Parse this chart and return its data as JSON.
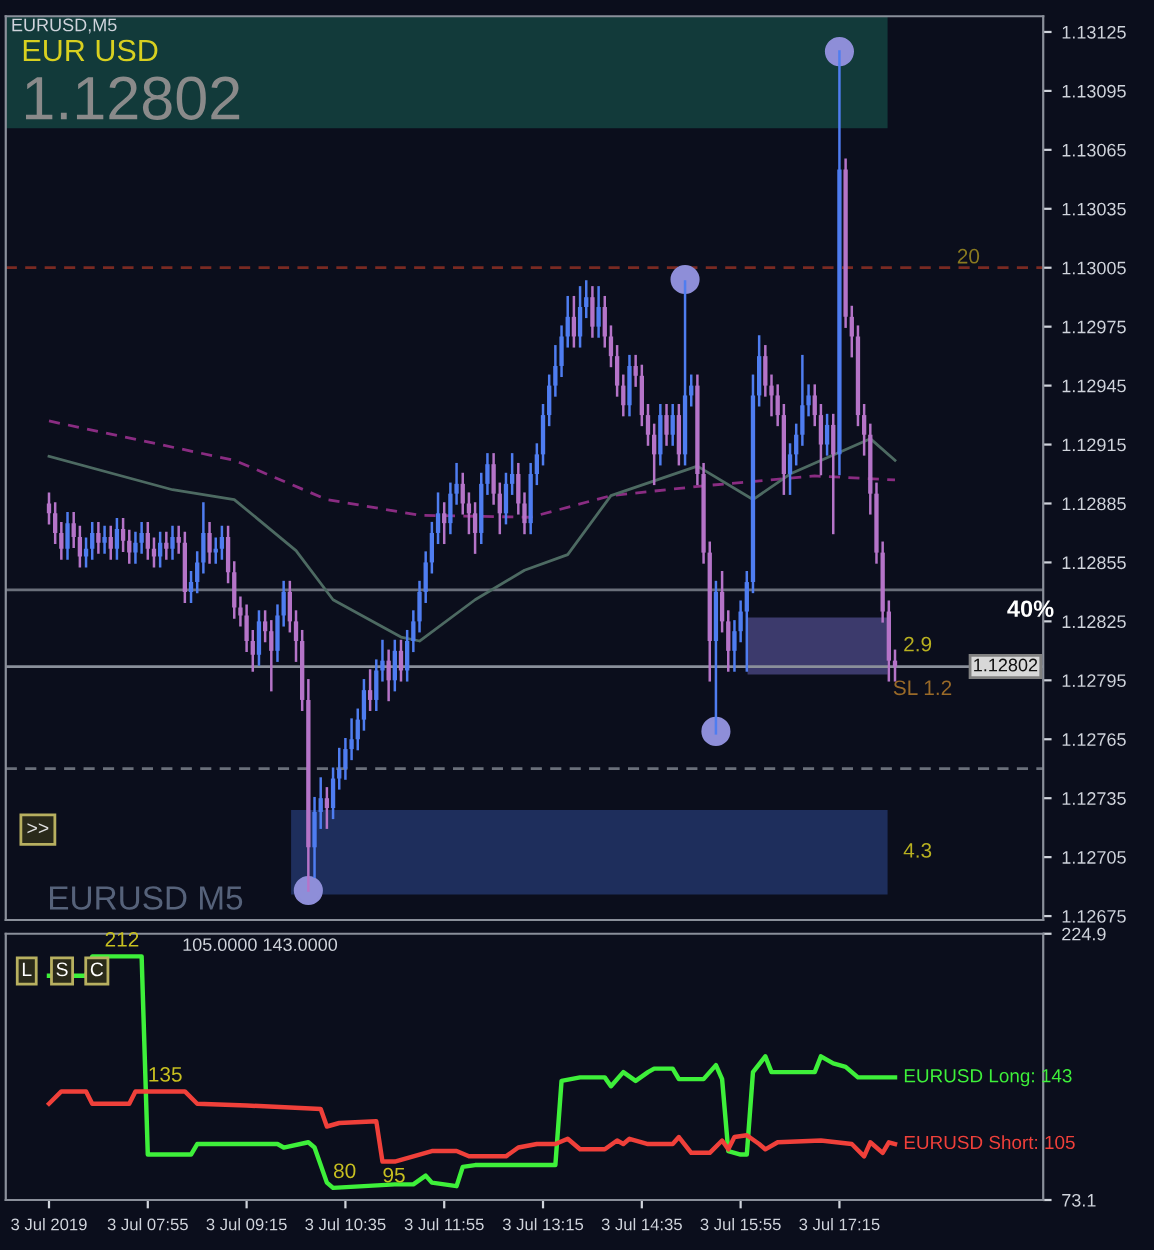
{
  "chart_data": [
    {
      "type": "candlestick",
      "title": "EURUSD,M5",
      "tick_labels": "y",
      "xlim": [
        "2019-07-03T06:00",
        "2019-07-03T20:00"
      ],
      "ylim": [
        1.12673,
        1.13133
      ],
      "yticks": [
        1.13125,
        1.13095,
        1.13065,
        1.13035,
        1.13005,
        1.12975,
        1.12945,
        1.12915,
        1.12885,
        1.12855,
        1.12825,
        1.12795,
        1.12765,
        1.12735,
        1.12705,
        1.12675
      ],
      "colors": [
        "#b574c8",
        "#b574c8",
        "#b574c8",
        "#4f7df0",
        "#b574c8",
        "#b574c8",
        "#4f7df0",
        "#4f7df0",
        "#b574c8",
        "#4f7df0",
        "#b574c8",
        "#4f7df0",
        "#b574c8",
        "#b574c8",
        "#4f7df0",
        "#4f7df0",
        "#b574c8",
        "#b574c8",
        "#4f7df0",
        "#b574c8",
        "#4f7df0",
        "#b574c8",
        "#b574c8",
        "#4f7df0",
        "#4f7df0",
        "#4f7df0",
        "#b574c8",
        "#4f7df0",
        "#4f7df0",
        "#b574c8",
        "#b574c8",
        "#b574c8",
        "#b574c8",
        "#b574c8",
        "#4f7df0",
        "#b574c8",
        "#b574c8",
        "#4f7df0",
        "#4f7df0",
        "#b574c8",
        "#b574c8",
        "#b574c8",
        "#b574c8",
        "#4f7df0",
        "#4f7df0",
        "#b574c8",
        "#4f7df0",
        "#4f7df0",
        "#4f7df0",
        "#4f7df0",
        "#4f7df0",
        "#4f7df0",
        "#b574c8",
        "#4f7df0",
        "#4f7df0",
        "#b574c8",
        "#4f7df0",
        "#b574c8",
        "#4f7df0",
        "#4f7df0",
        "#4f7df0",
        "#4f7df0",
        "#4f7df0",
        "#4f7df0",
        "#b574c8",
        "#4f7df0",
        "#4f7df0",
        "#b574c8",
        "#b574c8",
        "#b574c8",
        "#4f7df0",
        "#4f7df0",
        "#b574c8",
        "#b574c8",
        "#4f7df0",
        "#4f7df0",
        "#b574c8",
        "#b574c8",
        "#4f7df0",
        "#4f7df0",
        "#4f7df0",
        "#4f7df0",
        "#4f7df0",
        "#4f7df0",
        "#4f7df0",
        "#b574c8",
        "#4f7df0",
        "#4f7df0",
        "#b574c8",
        "#4f7df0",
        "#b574c8",
        "#b574c8",
        "#b574c8",
        "#b574c8",
        "#4f7df0",
        "#b574c8",
        "#b574c8",
        "#b574c8",
        "#b574c8",
        "#4f7df0",
        "#b574c8",
        "#4f7df0",
        "#b574c8",
        "#4f7df0",
        "#4f7df0",
        "#b574c8",
        "#b574c8",
        "#b574c8",
        "#4f7df0",
        "#b574c8",
        "#b574c8",
        "#4f7df0",
        "#4f7df0",
        "#4f7df0",
        "#4f7df0",
        "#4f7df0",
        "#b574c8",
        "#b574c8",
        "#b574c8",
        "#b574c8",
        "#4f7df0",
        "#4f7df0",
        "#4f7df0",
        "#4f7df0",
        "#b574c8",
        "#b574c8",
        "#4f7df0",
        "#b574c8",
        "#4f7df0",
        "#b574c8",
        "#b574c8",
        "#b574c8",
        "#b574c8",
        "#b574c8",
        "#b574c8",
        "#b574c8",
        "#b574c8",
        "#b574c8"
      ],
      "x": [
        "2019-07-03T06:35",
        "2019-07-03T06:40",
        "2019-07-03T06:45",
        "2019-07-03T06:50",
        "2019-07-03T06:55",
        "2019-07-03T07:00",
        "2019-07-03T07:05",
        "2019-07-03T07:10",
        "2019-07-03T07:15",
        "2019-07-03T07:20",
        "2019-07-03T07:25",
        "2019-07-03T07:30",
        "2019-07-03T07:35",
        "2019-07-03T07:40",
        "2019-07-03T07:45",
        "2019-07-03T07:50",
        "2019-07-03T07:55",
        "2019-07-03T08:00",
        "2019-07-03T08:05",
        "2019-07-03T08:10",
        "2019-07-03T08:15",
        "2019-07-03T08:20",
        "2019-07-03T08:25",
        "2019-07-03T08:30",
        "2019-07-03T08:35",
        "2019-07-03T08:40",
        "2019-07-03T08:45",
        "2019-07-03T08:50",
        "2019-07-03T08:55",
        "2019-07-03T09:00",
        "2019-07-03T09:05",
        "2019-07-03T09:10",
        "2019-07-03T09:15",
        "2019-07-03T09:20",
        "2019-07-03T09:25",
        "2019-07-03T09:30",
        "2019-07-03T09:35",
        "2019-07-03T09:40",
        "2019-07-03T09:45",
        "2019-07-03T09:50",
        "2019-07-03T09:55",
        "2019-07-03T10:00",
        "2019-07-03T10:05",
        "2019-07-03T10:10",
        "2019-07-03T10:15",
        "2019-07-03T10:20",
        "2019-07-03T10:25",
        "2019-07-03T10:30",
        "2019-07-03T10:35",
        "2019-07-03T10:40",
        "2019-07-03T10:45",
        "2019-07-03T10:50",
        "2019-07-03T10:55",
        "2019-07-03T11:00",
        "2019-07-03T11:05",
        "2019-07-03T11:10",
        "2019-07-03T11:15",
        "2019-07-03T11:20",
        "2019-07-03T11:25",
        "2019-07-03T11:30",
        "2019-07-03T11:35",
        "2019-07-03T11:40",
        "2019-07-03T11:45",
        "2019-07-03T11:50",
        "2019-07-03T11:55",
        "2019-07-03T12:00",
        "2019-07-03T12:05",
        "2019-07-03T12:10",
        "2019-07-03T12:15",
        "2019-07-03T12:20",
        "2019-07-03T12:25",
        "2019-07-03T12:30",
        "2019-07-03T12:35",
        "2019-07-03T12:40",
        "2019-07-03T12:45",
        "2019-07-03T12:50",
        "2019-07-03T12:55",
        "2019-07-03T13:00",
        "2019-07-03T13:05",
        "2019-07-03T13:10",
        "2019-07-03T13:15",
        "2019-07-03T13:20",
        "2019-07-03T13:25",
        "2019-07-03T13:30",
        "2019-07-03T13:35",
        "2019-07-03T13:40",
        "2019-07-03T13:45",
        "2019-07-03T13:50",
        "2019-07-03T13:55",
        "2019-07-03T14:00",
        "2019-07-03T14:05",
        "2019-07-03T14:10",
        "2019-07-03T14:15",
        "2019-07-03T14:20",
        "2019-07-03T14:25",
        "2019-07-03T14:30",
        "2019-07-03T14:35",
        "2019-07-03T14:40",
        "2019-07-03T14:45",
        "2019-07-03T14:50",
        "2019-07-03T14:55",
        "2019-07-03T15:00",
        "2019-07-03T15:05",
        "2019-07-03T15:10",
        "2019-07-03T15:15",
        "2019-07-03T15:20",
        "2019-07-03T15:25",
        "2019-07-03T15:30",
        "2019-07-03T15:35",
        "2019-07-03T15:40",
        "2019-07-03T15:45",
        "2019-07-03T15:50",
        "2019-07-03T15:55",
        "2019-07-03T16:00",
        "2019-07-03T16:05",
        "2019-07-03T16:10",
        "2019-07-03T16:15",
        "2019-07-03T16:20",
        "2019-07-03T16:25",
        "2019-07-03T16:30",
        "2019-07-03T16:35",
        "2019-07-03T16:40",
        "2019-07-03T16:45",
        "2019-07-03T16:50",
        "2019-07-03T16:55",
        "2019-07-03T17:00",
        "2019-07-03T17:05",
        "2019-07-03T17:10",
        "2019-07-03T17:15",
        "2019-07-03T17:20",
        "2019-07-03T17:25",
        "2019-07-03T17:30",
        "2019-07-03T17:35",
        "2019-07-03T17:40",
        "2019-07-03T17:45",
        "2019-07-03T17:50",
        "2019-07-03T17:55",
        "2019-07-03T18:00"
      ],
      "ohlc": [
        [
          1.12885,
          1.1289,
          1.12875,
          1.1288
        ],
        [
          1.1288,
          1.12885,
          1.12865,
          1.1287
        ],
        [
          1.1287,
          1.12875,
          1.12857,
          1.12862
        ],
        [
          1.12862,
          1.1288,
          1.12857,
          1.12875
        ],
        [
          1.12875,
          1.1288,
          1.12863,
          1.12868
        ],
        [
          1.12868,
          1.12873,
          1.12853,
          1.12858
        ],
        [
          1.12858,
          1.12867,
          1.12853,
          1.12862
        ],
        [
          1.12862,
          1.12875,
          1.12857,
          1.1287
        ],
        [
          1.1287,
          1.12875,
          1.1286,
          1.12865
        ],
        [
          1.12865,
          1.12873,
          1.1286,
          1.12868
        ],
        [
          1.12868,
          1.12873,
          1.12857,
          1.12862
        ],
        [
          1.12862,
          1.12877,
          1.12857,
          1.12872
        ],
        [
          1.12872,
          1.12877,
          1.12861,
          1.12866
        ],
        [
          1.12866,
          1.12871,
          1.12855,
          1.1286
        ],
        [
          1.1286,
          1.1287,
          1.12855,
          1.12865
        ],
        [
          1.12865,
          1.12875,
          1.1286,
          1.1287
        ],
        [
          1.1287,
          1.12875,
          1.12857,
          1.12862
        ],
        [
          1.12862,
          1.12867,
          1.12853,
          1.12858
        ],
        [
          1.12858,
          1.1287,
          1.12853,
          1.12865
        ],
        [
          1.12865,
          1.1287,
          1.12857,
          1.12862
        ],
        [
          1.12862,
          1.12873,
          1.12857,
          1.12868
        ],
        [
          1.12868,
          1.12873,
          1.1286,
          1.12865
        ],
        [
          1.12865,
          1.1287,
          1.12835,
          1.1284
        ],
        [
          1.1284,
          1.1285,
          1.12835,
          1.12845
        ],
        [
          1.12845,
          1.1286,
          1.1284,
          1.12855
        ],
        [
          1.12855,
          1.12885,
          1.1285,
          1.1287
        ],
        [
          1.1287,
          1.12875,
          1.12855,
          1.1286
        ],
        [
          1.1286,
          1.12867,
          1.12855,
          1.12862
        ],
        [
          1.12862,
          1.12873,
          1.12857,
          1.12868
        ],
        [
          1.12868,
          1.12873,
          1.12845,
          1.1285
        ],
        [
          1.1285,
          1.12855,
          1.12827,
          1.12832
        ],
        [
          1.12832,
          1.12837,
          1.12823,
          1.12828
        ],
        [
          1.12828,
          1.12833,
          1.1281,
          1.12815
        ],
        [
          1.12815,
          1.1282,
          1.128,
          1.12808
        ],
        [
          1.12808,
          1.1283,
          1.12803,
          1.12825
        ],
        [
          1.12825,
          1.1283,
          1.12815,
          1.1282
        ],
        [
          1.1282,
          1.12825,
          1.1279,
          1.1281
        ],
        [
          1.1281,
          1.12833,
          1.12805,
          1.12828
        ],
        [
          1.12828,
          1.12845,
          1.12823,
          1.1284
        ],
        [
          1.1284,
          1.12845,
          1.1282,
          1.12825
        ],
        [
          1.12825,
          1.1283,
          1.12805,
          1.12815
        ],
        [
          1.12815,
          1.1282,
          1.1278,
          1.12785
        ],
        [
          1.12785,
          1.12795,
          1.12688,
          1.1271
        ],
        [
          1.1271,
          1.12735,
          1.12695,
          1.12728
        ],
        [
          1.12728,
          1.12745,
          1.1272,
          1.12735
        ],
        [
          1.12735,
          1.1274,
          1.1272,
          1.1273
        ],
        [
          1.1273,
          1.1275,
          1.12725,
          1.12745
        ],
        [
          1.12745,
          1.1276,
          1.1274,
          1.1275
        ],
        [
          1.1275,
          1.12765,
          1.12745,
          1.1276
        ],
        [
          1.1276,
          1.12775,
          1.12755,
          1.12765
        ],
        [
          1.12765,
          1.1278,
          1.1276,
          1.12775
        ],
        [
          1.12775,
          1.12795,
          1.1277,
          1.1279
        ],
        [
          1.1279,
          1.128,
          1.1278,
          1.12785
        ],
        [
          1.12785,
          1.12805,
          1.1278,
          1.128
        ],
        [
          1.128,
          1.12815,
          1.12795,
          1.12805
        ],
        [
          1.12805,
          1.1281,
          1.12785,
          1.12795
        ],
        [
          1.12795,
          1.12815,
          1.1279,
          1.1281
        ],
        [
          1.1281,
          1.12815,
          1.12795,
          1.128
        ],
        [
          1.128,
          1.1282,
          1.12795,
          1.12815
        ],
        [
          1.12815,
          1.1283,
          1.1281,
          1.12825
        ],
        [
          1.12825,
          1.12845,
          1.1282,
          1.1284
        ],
        [
          1.1284,
          1.1286,
          1.12835,
          1.12855
        ],
        [
          1.12855,
          1.12875,
          1.1285,
          1.1287
        ],
        [
          1.1287,
          1.1289,
          1.12865,
          1.1288
        ],
        [
          1.1288,
          1.12885,
          1.12865,
          1.12875
        ],
        [
          1.12875,
          1.12895,
          1.1287,
          1.1289
        ],
        [
          1.1289,
          1.12905,
          1.12885,
          1.12895
        ],
        [
          1.12895,
          1.129,
          1.1288,
          1.12885
        ],
        [
          1.12885,
          1.1289,
          1.1287,
          1.1288
        ],
        [
          1.1288,
          1.12885,
          1.1286,
          1.1287
        ],
        [
          1.1287,
          1.129,
          1.12865,
          1.12895
        ],
        [
          1.12895,
          1.1291,
          1.1289,
          1.12905
        ],
        [
          1.12905,
          1.1291,
          1.12885,
          1.1289
        ],
        [
          1.1289,
          1.12895,
          1.1287,
          1.1288
        ],
        [
          1.1288,
          1.129,
          1.12875,
          1.12895
        ],
        [
          1.12895,
          1.1291,
          1.1289,
          1.129
        ],
        [
          1.129,
          1.12905,
          1.1288,
          1.12885
        ],
        [
          1.12885,
          1.1289,
          1.1287,
          1.12875
        ],
        [
          1.12875,
          1.12905,
          1.1287,
          1.129
        ],
        [
          1.129,
          1.12915,
          1.12895,
          1.1291
        ],
        [
          1.1291,
          1.12935,
          1.12905,
          1.1293
        ],
        [
          1.1293,
          1.1295,
          1.12925,
          1.12945
        ],
        [
          1.12945,
          1.12965,
          1.1294,
          1.12955
        ],
        [
          1.12955,
          1.12975,
          1.1295,
          1.1297
        ],
        [
          1.1297,
          1.1299,
          1.12965,
          1.1298
        ],
        [
          1.1298,
          1.1299,
          1.12965,
          1.1297
        ],
        [
          1.1297,
          1.12995,
          1.12965,
          1.12985
        ],
        [
          1.12985,
          1.12998,
          1.1298,
          1.1299
        ],
        [
          1.1299,
          1.12995,
          1.1297,
          1.12975
        ],
        [
          1.12975,
          1.12995,
          1.1297,
          1.12985
        ],
        [
          1.12985,
          1.1299,
          1.12965,
          1.1297
        ],
        [
          1.1297,
          1.12975,
          1.12955,
          1.1296
        ],
        [
          1.1296,
          1.12965,
          1.1294,
          1.12945
        ],
        [
          1.12945,
          1.1295,
          1.1293,
          1.12935
        ],
        [
          1.12935,
          1.1296,
          1.1293,
          1.12955
        ],
        [
          1.12955,
          1.1296,
          1.12945,
          1.1295
        ],
        [
          1.1295,
          1.12955,
          1.12925,
          1.1293
        ],
        [
          1.1293,
          1.12935,
          1.12915,
          1.1292
        ],
        [
          1.1292,
          1.12925,
          1.12895,
          1.1291
        ],
        [
          1.1291,
          1.12935,
          1.12905,
          1.1293
        ],
        [
          1.1293,
          1.12935,
          1.12915,
          1.1292
        ],
        [
          1.1292,
          1.12935,
          1.12915,
          1.1293
        ],
        [
          1.1293,
          1.12935,
          1.12905,
          1.1291
        ],
        [
          1.1291,
          1.12998,
          1.12905,
          1.1294
        ],
        [
          1.1294,
          1.1295,
          1.12935,
          1.12945
        ],
        [
          1.12945,
          1.1295,
          1.12895,
          1.129
        ],
        [
          1.129,
          1.12905,
          1.12855,
          1.1286
        ],
        [
          1.1286,
          1.12865,
          1.12795,
          1.12815
        ],
        [
          1.12815,
          1.12845,
          1.12768,
          1.1284
        ],
        [
          1.1284,
          1.1285,
          1.1282,
          1.12825
        ],
        [
          1.12825,
          1.1283,
          1.128,
          1.1281
        ],
        [
          1.1281,
          1.12825,
          1.128,
          1.1282
        ],
        [
          1.1282,
          1.12835,
          1.12815,
          1.1283
        ],
        [
          1.1283,
          1.1285,
          1.128,
          1.12845
        ],
        [
          1.12845,
          1.1295,
          1.1284,
          1.1294
        ],
        [
          1.1294,
          1.1297,
          1.12935,
          1.1296
        ],
        [
          1.1296,
          1.12965,
          1.1294,
          1.12945
        ],
        [
          1.12945,
          1.1295,
          1.1293,
          1.1294
        ],
        [
          1.1294,
          1.12945,
          1.12925,
          1.1293
        ],
        [
          1.1293,
          1.12935,
          1.1289,
          1.129
        ],
        [
          1.129,
          1.12915,
          1.1289,
          1.1291
        ],
        [
          1.1291,
          1.12925,
          1.12905,
          1.1292
        ],
        [
          1.1292,
          1.1296,
          1.12915,
          1.12935
        ],
        [
          1.12935,
          1.12945,
          1.1293,
          1.1294
        ],
        [
          1.1294,
          1.12945,
          1.12925,
          1.1293
        ],
        [
          1.1293,
          1.12935,
          1.129,
          1.12915
        ],
        [
          1.12915,
          1.1293,
          1.1291,
          1.12925
        ],
        [
          1.12925,
          1.1293,
          1.1287,
          1.1291
        ],
        [
          1.1291,
          1.13115,
          1.129,
          1.13055
        ],
        [
          1.13055,
          1.1306,
          1.12975,
          1.1298
        ],
        [
          1.1298,
          1.12985,
          1.1296,
          1.1297
        ],
        [
          1.1297,
          1.12975,
          1.12925,
          1.1293
        ],
        [
          1.1293,
          1.12935,
          1.1291,
          1.1292
        ],
        [
          1.1292,
          1.12925,
          1.1288,
          1.1289
        ],
        [
          1.1289,
          1.12895,
          1.12855,
          1.1286
        ],
        [
          1.1286,
          1.12865,
          1.12825,
          1.1283
        ],
        [
          1.1283,
          1.12835,
          1.12795,
          1.12805
        ],
        [
          1.12805,
          1.1281,
          1.12795,
          1.12802
        ]
      ],
      "series": [
        {
          "type": "line",
          "color": "#8a2c82",
          "line_style": "dashed",
          "x": [
            "2019-07-03T06:35",
            "2019-07-03T09:05",
            "2019-07-03T10:20",
            "2019-07-03T11:35",
            "2019-07-03T13:05",
            "2019-07-03T14:10",
            "2019-07-03T15:25",
            "2019-07-03T16:55",
            "2019-07-03T18:00"
          ],
          "values": [
            1.12927,
            1.12907,
            1.12887,
            1.12879,
            1.12878,
            1.12889,
            1.12894,
            1.12899,
            1.12897
          ]
        },
        {
          "type": "line",
          "color": "#4d6a62",
          "line_style": "solid",
          "x": [
            "2019-07-03T06:35",
            "2019-07-03T08:15",
            "2019-07-03T09:05",
            "2019-07-03T09:55",
            "2019-07-03T10:25",
            "2019-07-03T11:20",
            "2019-07-03T11:35",
            "2019-07-03T12:20",
            "2019-07-03T13:00",
            "2019-07-03T13:35",
            "2019-07-03T14:10",
            "2019-07-03T15:20",
            "2019-07-03T16:05",
            "2019-07-03T16:35",
            "2019-07-03T17:40",
            "2019-07-03T18:00"
          ],
          "values": [
            1.12909,
            1.12892,
            1.12887,
            1.12861,
            1.12836,
            1.12817,
            1.12815,
            1.12836,
            1.12851,
            1.12859,
            1.12889,
            1.12904,
            1.12887,
            1.129,
            1.12918,
            1.12907
          ]
        },
        {
          "type": "scatter",
          "color": "#8e8ed8",
          "marker": "circle",
          "x": [
            "2019-07-03T10:05",
            "2019-07-03T15:10",
            "2019-07-03T15:35",
            "2019-07-03T17:15"
          ],
          "values": [
            1.12688,
            1.12999,
            1.12769,
            1.13115
          ]
        }
      ],
      "ref_lines": [
        {
          "axis": "y",
          "value": 1.13005,
          "label": null,
          "color": "#7a2a22",
          "line_style": "dashed"
        },
        {
          "axis": "y",
          "value": 1.12841,
          "label": null,
          "color": "#6a6f7a",
          "line_style": "solid"
        },
        {
          "axis": "y",
          "value": 1.12802,
          "label": "1.12802",
          "color": "#8a8f9a",
          "line_style": "solid"
        },
        {
          "axis": "y",
          "value": 1.1275,
          "label": null,
          "color": "#6a6f7a",
          "line_style": "dashed"
        }
      ],
      "bands": [
        {
          "axis": "y",
          "from": 1.13076,
          "to": 1.13133,
          "label": null,
          "color": "#123a3a"
        },
        {
          "axis": "y",
          "from": 1.12798,
          "to": 1.12827,
          "label": "2.9",
          "color": "#3c3a6c"
        },
        {
          "axis": "y",
          "from": 1.12686,
          "to": 1.12729,
          "label": "4.3",
          "color": "#1e2e5c"
        }
      ],
      "annotations": [
        "EUR USD",
        "1.12802",
        "EURUSD M5",
        ">>",
        "SL 1.2",
        "40%",
        {
          "text": "20",
          "x": "2019-07-03T18:50",
          "y": 1.13005
        }
      ]
    },
    {
      "type": "line",
      "subtitle": "105.0000 143.0000",
      "xlim": [
        "2019-07-03T06:00",
        "2019-07-03T20:00"
      ],
      "xticks": [
        {
          "value": "2019-07-03T06:35",
          "label": "3 Jul 2019"
        },
        {
          "value": "2019-07-03T07:55",
          "label": "3 Jul 07:55"
        },
        {
          "value": "2019-07-03T09:15",
          "label": "3 Jul 09:15"
        },
        {
          "value": "2019-07-03T10:35",
          "label": "3 Jul 10:35"
        },
        {
          "value": "2019-07-03T11:55",
          "label": "3 Jul 11:55"
        },
        {
          "value": "2019-07-03T13:15",
          "label": "3 Jul 13:15"
        },
        {
          "value": "2019-07-03T14:35",
          "label": "3 Jul 14:35"
        },
        {
          "value": "2019-07-03T15:55",
          "label": "3 Jul 15:55"
        },
        {
          "value": "2019-07-03T17:15",
          "label": "3 Jul 17:15"
        }
      ],
      "ylim": [
        73.1,
        224.9
      ],
      "yticks": [
        73.1,
        224.9
      ],
      "series": [
        {
          "name": "EURUSD Long: 143",
          "color": "#3ef03a",
          "x": [
            "2019-07-03T06:35",
            "2019-07-03T07:05",
            "2019-07-03T07:10",
            "2019-07-03T07:50",
            "2019-07-03T07:55",
            "2019-07-03T08:30",
            "2019-07-03T08:35",
            "2019-07-03T09:40",
            "2019-07-03T09:45",
            "2019-07-03T10:05",
            "2019-07-03T10:10",
            "2019-07-03T10:20",
            "2019-07-03T10:25",
            "2019-07-03T11:15",
            "2019-07-03T11:30",
            "2019-07-03T11:40",
            "2019-07-03T11:45",
            "2019-07-03T12:05",
            "2019-07-03T12:10",
            "2019-07-03T12:20",
            "2019-07-03T13:25",
            "2019-07-03T13:30",
            "2019-07-03T13:45",
            "2019-07-03T14:05",
            "2019-07-03T14:10",
            "2019-07-03T14:20",
            "2019-07-03T14:30",
            "2019-07-03T14:40",
            "2019-07-03T14:45",
            "2019-07-03T15:00",
            "2019-07-03T15:05",
            "2019-07-03T15:25",
            "2019-07-03T15:35",
            "2019-07-03T15:40",
            "2019-07-03T15:45",
            "2019-07-03T15:55",
            "2019-07-03T16:00",
            "2019-07-03T16:05",
            "2019-07-03T16:15",
            "2019-07-03T16:20",
            "2019-07-03T16:55",
            "2019-07-03T17:00",
            "2019-07-03T17:10",
            "2019-07-03T17:20",
            "2019-07-03T17:30",
            "2019-07-03T18:00"
          ],
          "values": [
            201,
            201,
            212,
            212,
            99,
            99,
            105,
            105,
            103,
            106,
            103,
            83,
            80,
            82,
            82,
            87,
            83,
            81,
            92,
            93,
            93,
            141,
            143,
            143,
            138,
            146,
            141,
            146,
            148,
            148,
            142,
            142,
            150,
            142,
            101,
            99,
            99,
            146,
            155,
            146,
            146,
            155,
            151,
            149,
            143,
            143
          ]
        },
        {
          "name": "EURUSD Short: 105",
          "color": "#f0403a",
          "x": [
            "2019-07-03T06:35",
            "2019-07-03T06:45",
            "2019-07-03T07:05",
            "2019-07-03T07:10",
            "2019-07-03T07:40",
            "2019-07-03T07:45",
            "2019-07-03T08:25",
            "2019-07-03T08:35",
            "2019-07-03T09:15",
            "2019-07-03T10:15",
            "2019-07-03T10:20",
            "2019-07-03T10:30",
            "2019-07-03T11:00",
            "2019-07-03T11:05",
            "2019-07-03T11:15",
            "2019-07-03T11:35",
            "2019-07-03T11:45",
            "2019-07-03T12:05",
            "2019-07-03T12:15",
            "2019-07-03T12:45",
            "2019-07-03T12:55",
            "2019-07-03T13:10",
            "2019-07-03T13:25",
            "2019-07-03T13:35",
            "2019-07-03T13:45",
            "2019-07-03T14:05",
            "2019-07-03T14:15",
            "2019-07-03T14:20",
            "2019-07-03T14:25",
            "2019-07-03T14:40",
            "2019-07-03T15:00",
            "2019-07-03T15:05",
            "2019-07-03T15:15",
            "2019-07-03T15:30",
            "2019-07-03T15:40",
            "2019-07-03T15:45",
            "2019-07-03T15:50",
            "2019-07-03T16:00",
            "2019-07-03T16:10",
            "2019-07-03T16:15",
            "2019-07-03T16:25",
            "2019-07-03T17:00",
            "2019-07-03T17:25",
            "2019-07-03T17:35",
            "2019-07-03T17:40",
            "2019-07-03T17:50",
            "2019-07-03T17:55",
            "2019-07-03T18:00"
          ],
          "values": [
            128,
            135,
            135,
            128,
            128,
            135,
            135,
            128,
            127,
            125,
            115,
            117,
            118,
            95,
            95,
            99,
            101,
            101,
            98,
            98,
            103,
            105,
            105,
            108,
            102,
            102,
            107,
            105,
            108,
            105,
            105,
            109,
            100,
            100,
            107,
            102,
            109,
            110,
            105,
            102,
            106,
            107,
            105,
            98,
            106,
            100,
            106,
            105
          ]
        }
      ],
      "annotations": [
        {
          "text": "212",
          "x": "2019-07-03T07:20",
          "y": 212
        },
        {
          "text": "135",
          "x": "2019-07-03T07:55",
          "y": 135
        },
        {
          "text": "95",
          "x": "2019-07-03T11:05",
          "y": 95
        },
        {
          "text": "80",
          "x": "2019-07-03T10:25",
          "y": 80
        },
        "L",
        "S",
        "C"
      ]
    }
  ]
}
